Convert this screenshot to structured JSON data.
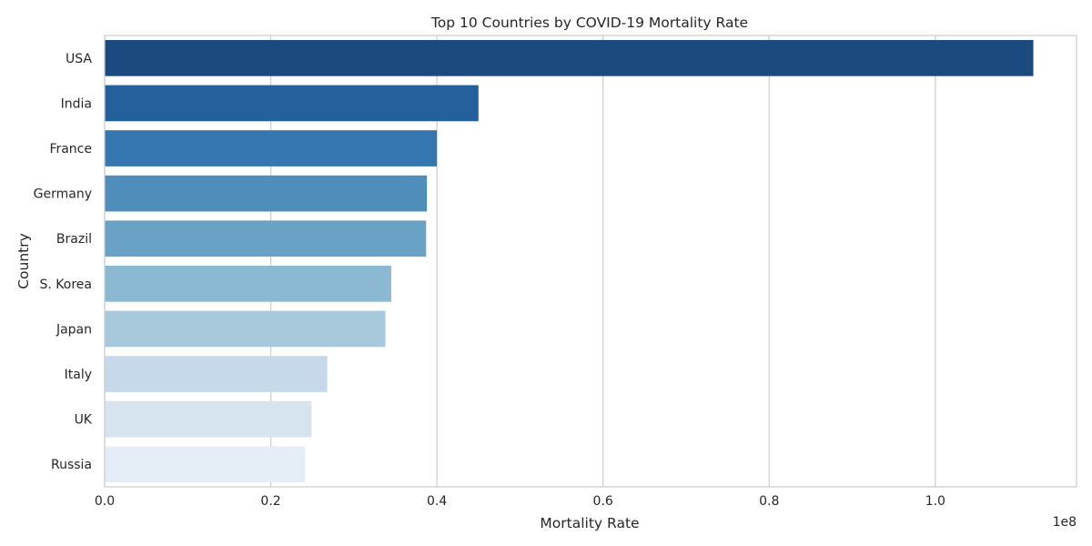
{
  "chart_data": {
    "type": "bar",
    "orientation": "horizontal",
    "title": "Top 10 Countries by COVID-19 Mortality Rate",
    "xlabel": "Mortality Rate",
    "ylabel": "Country",
    "offset_label": "1e8",
    "categories": [
      "USA",
      "India",
      "France",
      "Germany",
      "Brazil",
      "S. Korea",
      "Japan",
      "Italy",
      "UK",
      "Russia"
    ],
    "values": [
      111800000,
      45000000,
      40000000,
      38800000,
      38700000,
      34500000,
      33800000,
      26800000,
      24900000,
      24100000
    ],
    "xlim": [
      0,
      117000000
    ],
    "xticks": [
      0,
      20000000,
      40000000,
      60000000,
      80000000,
      100000000
    ],
    "xtick_labels": [
      "0.0",
      "0.2",
      "0.4",
      "0.6",
      "0.8",
      "1.0"
    ],
    "grid": "vertical",
    "colors": [
      "#1a4a80",
      "#24619c",
      "#3575b0",
      "#4f8dbb",
      "#6aa2c6",
      "#8ab9d1",
      "#a8c9dc",
      "#c5d9ea",
      "#d6e4f0",
      "#e5eef7"
    ]
  }
}
